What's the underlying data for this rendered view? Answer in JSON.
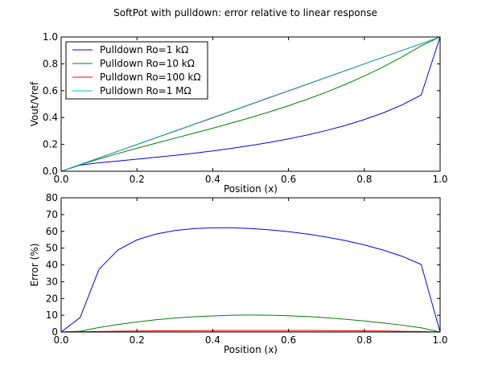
{
  "figure": {
    "title": "SoftPot with pulldown: error relative to linear response",
    "background": "#ffffff"
  },
  "chart_data": [
    {
      "type": "line",
      "xlabel": "Position (x)",
      "ylabel": "Vout/Vref",
      "xlim": [
        0.0,
        1.0
      ],
      "ylim": [
        0.0,
        1.0
      ],
      "xticks": [
        "0.0",
        "0.2",
        "0.4",
        "0.6",
        "0.8",
        "1.0"
      ],
      "yticks": [
        "0.0",
        "0.2",
        "0.4",
        "0.6",
        "0.8",
        "1.0"
      ],
      "grid": false,
      "legend_position": "upper-left",
      "x": [
        0,
        0.05,
        0.1,
        0.15,
        0.2,
        0.25,
        0.3,
        0.35,
        0.4,
        0.45,
        0.5,
        0.55,
        0.6,
        0.65,
        0.7,
        0.75,
        0.8,
        0.85,
        0.9,
        0.95,
        1.0
      ],
      "series": [
        {
          "name": "Pulldown Ro=1 kΩ",
          "color": "#0000ff",
          "values": [
            0,
            0.0457,
            0.0626,
            0.0766,
            0.0901,
            0.1039,
            0.1185,
            0.1343,
            0.1515,
            0.1705,
            0.1915,
            0.2149,
            0.2411,
            0.2704,
            0.3036,
            0.3413,
            0.3846,
            0.4349,
            0.4945,
            0.5675,
            1.0
          ]
        },
        {
          "name": "Pulldown Ro=10 kΩ",
          "color": "#008000",
          "values": [
            0,
            0.0474,
            0.0912,
            0.1322,
            0.1712,
            0.2088,
            0.2459,
            0.2829,
            0.3204,
            0.3592,
            0.3997,
            0.4424,
            0.4879,
            0.5367,
            0.5894,
            0.6468,
            0.7092,
            0.7775,
            0.8523,
            0.9339,
            1.0
          ]
        },
        {
          "name": "Pulldown Ro=100 kΩ",
          "color": "#ff0000",
          "values": [
            0,
            0.0495,
            0.0991,
            0.1487,
            0.1984,
            0.2481,
            0.2978,
            0.3476,
            0.3975,
            0.4474,
            0.4975,
            0.5475,
            0.5977,
            0.648,
            0.6983,
            0.7486,
            0.799,
            0.8494,
            0.8997,
            0.9499,
            1.0
          ]
        },
        {
          "name": "Pulldown Ro=1 MΩ",
          "color": "#00bfbf",
          "values": [
            0,
            0.05,
            0.1,
            0.15,
            0.2,
            0.25,
            0.3,
            0.35,
            0.4,
            0.45,
            0.5,
            0.55,
            0.6,
            0.65,
            0.7,
            0.75,
            0.8,
            0.85,
            0.9,
            0.95,
            1.0
          ]
        }
      ]
    },
    {
      "type": "line",
      "xlabel": "Position (x)",
      "ylabel": "Error (%)",
      "xlim": [
        0.0,
        1.0
      ],
      "ylim": [
        0,
        80
      ],
      "xticks": [
        "0.0",
        "0.2",
        "0.4",
        "0.6",
        "0.8",
        "1.0"
      ],
      "yticks": [
        "0",
        "10",
        "20",
        "30",
        "40",
        "50",
        "60",
        "70",
        "80"
      ],
      "grid": false,
      "x": [
        0,
        0.05,
        0.1,
        0.15,
        0.2,
        0.25,
        0.3,
        0.35,
        0.4,
        0.45,
        0.5,
        0.55,
        0.6,
        0.65,
        0.7,
        0.75,
        0.8,
        0.85,
        0.9,
        0.95,
        1.0
      ],
      "series": [
        {
          "color": "#0000ff",
          "values": [
            0,
            8.6,
            37.4,
            48.9,
            54.9,
            58.4,
            60.5,
            61.6,
            62.1,
            62.1,
            61.7,
            60.9,
            59.8,
            58.4,
            56.6,
            54.5,
            51.9,
            48.8,
            45.1,
            40.3,
            0
          ]
        },
        {
          "color": "#008000",
          "values": [
            0,
            0.5,
            2.7,
            4.5,
            6.0,
            7.3,
            8.3,
            9.1,
            9.6,
            10.0,
            10.1,
            10.0,
            9.7,
            9.2,
            8.5,
            7.6,
            6.6,
            5.4,
            4.1,
            2.5,
            0
          ]
        },
        {
          "color": "#ff0000",
          "values": [
            0,
            0.2,
            0.3,
            0.5,
            0.6,
            0.7,
            0.8,
            0.8,
            0.9,
            0.9,
            0.9,
            0.9,
            0.9,
            0.9,
            0.8,
            0.8,
            0.7,
            0.6,
            0.4,
            0.3,
            0
          ]
        },
        {
          "color": "#00bfbf",
          "values": [
            0,
            0.02,
            0.03,
            0.05,
            0.06,
            0.07,
            0.08,
            0.08,
            0.09,
            0.09,
            0.09,
            0.09,
            0.09,
            0.09,
            0.08,
            0.08,
            0.07,
            0.06,
            0.04,
            0.03,
            0
          ]
        }
      ]
    }
  ]
}
